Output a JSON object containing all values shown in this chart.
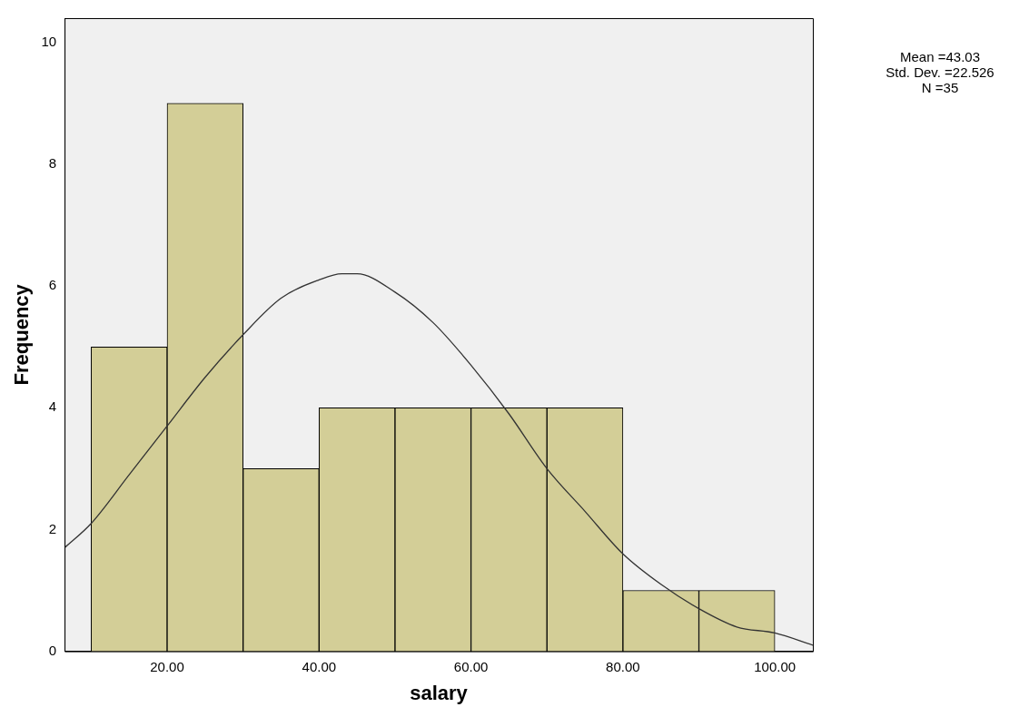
{
  "chart_data": {
    "type": "histogram",
    "xlabel": "salary",
    "ylabel": "Frequency",
    "bins": [
      10,
      20,
      30,
      40,
      50,
      60,
      70,
      80,
      90,
      100
    ],
    "values": [
      5,
      9,
      3,
      4,
      4,
      4,
      4,
      1,
      1
    ],
    "color": "#d3ce97",
    "series": [
      {
        "type": "line",
        "color": "#333333",
        "x": [
          6.5,
          10,
          15,
          20,
          25,
          30,
          35,
          40,
          43,
          45,
          50,
          55,
          60,
          65,
          70,
          75,
          80,
          85,
          90,
          95,
          100,
          105
        ],
        "values": [
          1.7,
          2.1,
          2.9,
          3.7,
          4.5,
          5.2,
          5.8,
          6.1,
          6.2,
          6.2,
          5.9,
          5.4,
          4.7,
          3.9,
          3.0,
          2.3,
          1.6,
          1.1,
          0.7,
          0.4,
          0.3,
          0.1
        ]
      }
    ],
    "xlim": [
      6.5,
      105
    ],
    "ylim": [
      0,
      10.4
    ],
    "xticks": [
      {
        "value": 20,
        "label": "20.00"
      },
      {
        "value": 40,
        "label": "40.00"
      },
      {
        "value": 60,
        "label": "60.00"
      },
      {
        "value": 80,
        "label": "80.00"
      },
      {
        "value": 100,
        "label": "100.00"
      }
    ],
    "yticks": [
      0,
      2,
      4,
      6,
      8,
      10
    ],
    "grid": false,
    "legend": false,
    "annotations": [
      "Mean =43.03",
      "Std. Dev. =22.526",
      "N =35"
    ]
  }
}
